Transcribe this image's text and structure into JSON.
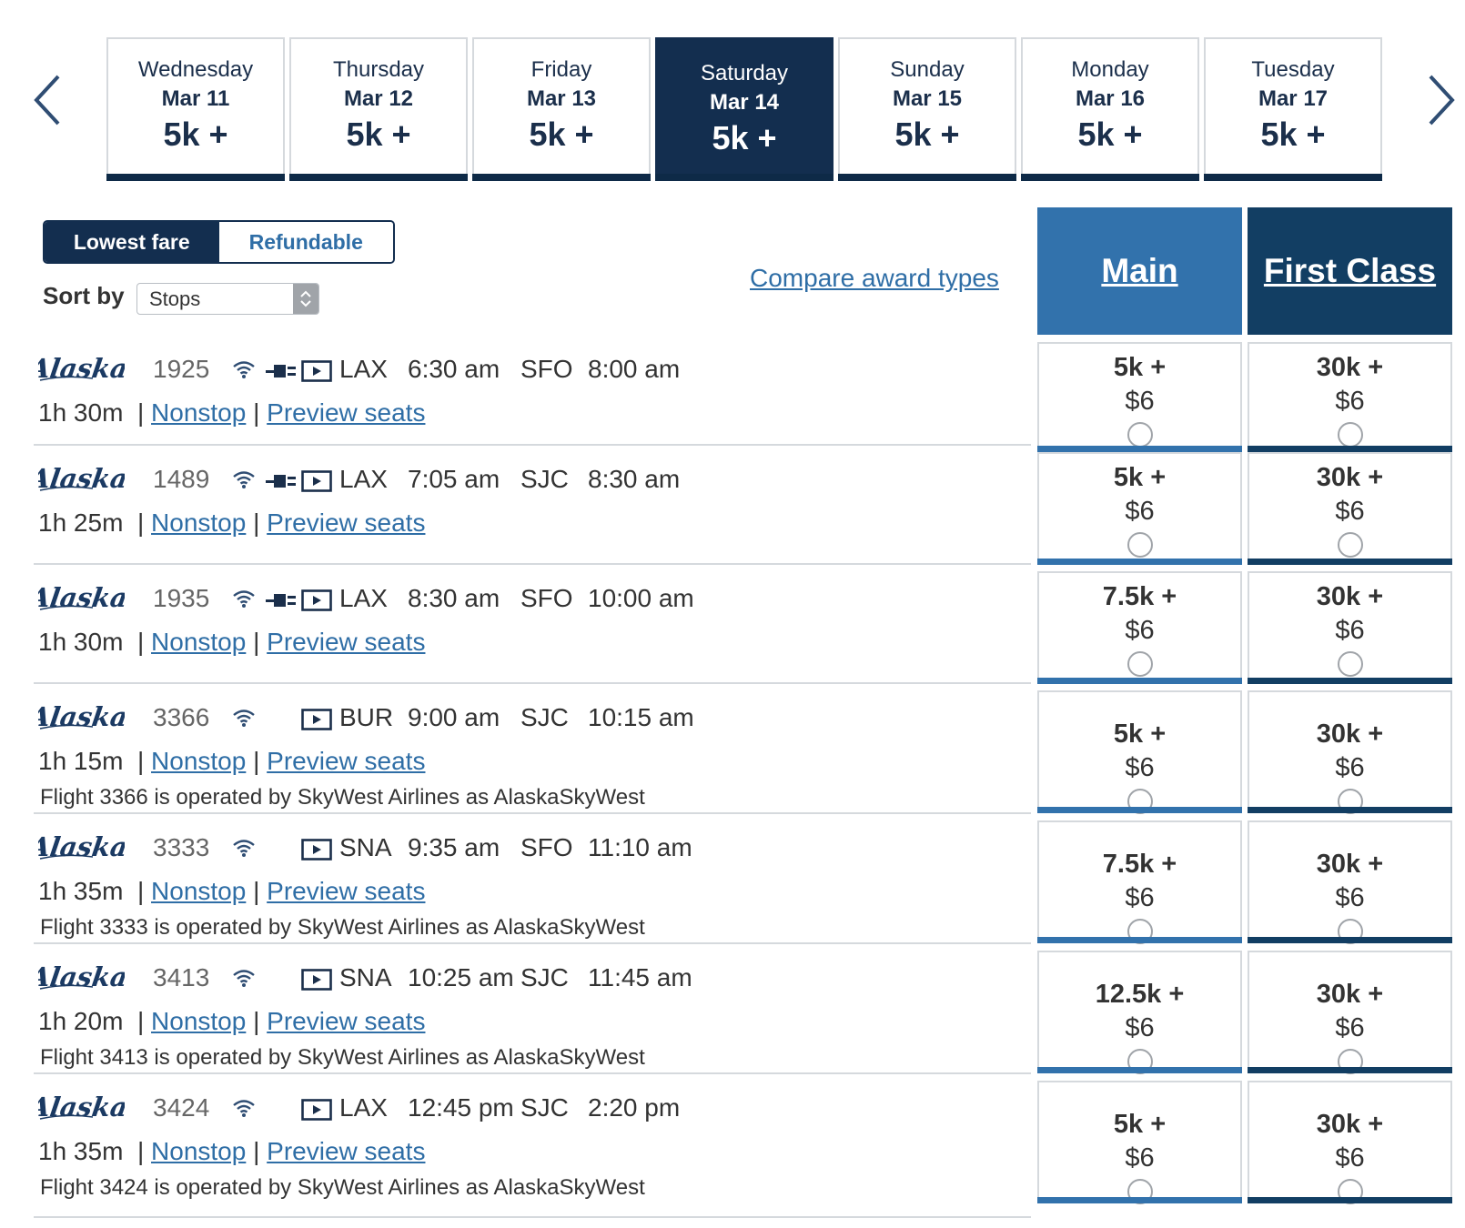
{
  "date_strip": {
    "dates": [
      {
        "day": "Wednesday",
        "date": "Mar 11",
        "price": "5k +",
        "selected": false
      },
      {
        "day": "Thursday",
        "date": "Mar 12",
        "price": "5k +",
        "selected": false
      },
      {
        "day": "Friday",
        "date": "Mar 13",
        "price": "5k +",
        "selected": false
      },
      {
        "day": "Saturday",
        "date": "Mar 14",
        "price": "5k +",
        "selected": true
      },
      {
        "day": "Sunday",
        "date": "Mar 15",
        "price": "5k +",
        "selected": false
      },
      {
        "day": "Monday",
        "date": "Mar 16",
        "price": "5k +",
        "selected": false
      },
      {
        "day": "Tuesday",
        "date": "Mar 17",
        "price": "5k +",
        "selected": false
      }
    ],
    "prev_icon": "chevron-left-icon",
    "next_icon": "chevron-right-icon"
  },
  "fare_toggle": {
    "options": [
      {
        "label": "Lowest fare",
        "active": true
      },
      {
        "label": "Refundable",
        "active": false
      }
    ]
  },
  "sort": {
    "label": "Sort by",
    "selected": "Stops"
  },
  "compare_link": "Compare award types",
  "cabins": {
    "main": "Main",
    "first": "First Class"
  },
  "colors": {
    "navy": "#132e4f",
    "main_blue": "#3272ac",
    "first_blue": "#123e63",
    "link": "#2f6ea6"
  },
  "flights": [
    {
      "airline": "Alaska",
      "number": "1925",
      "amenities": [
        "wifi",
        "power",
        "video"
      ],
      "origin": "LAX",
      "depart": "6:30 am",
      "destination": "SFO",
      "arrive": "8:00 am",
      "duration": "1h 30m",
      "stops": "Nonstop",
      "seats_link": "Preview seats",
      "operator_note": "",
      "main": {
        "miles": "5k +",
        "tax": "$6"
      },
      "first": {
        "miles": "30k +",
        "tax": "$6"
      }
    },
    {
      "airline": "Alaska",
      "number": "1489",
      "amenities": [
        "wifi",
        "power",
        "video"
      ],
      "origin": "LAX",
      "depart": "7:05 am",
      "destination": "SJC",
      "arrive": "8:30 am",
      "duration": "1h 25m",
      "stops": "Nonstop",
      "seats_link": "Preview seats",
      "operator_note": "",
      "main": {
        "miles": "5k +",
        "tax": "$6"
      },
      "first": {
        "miles": "30k +",
        "tax": "$6"
      }
    },
    {
      "airline": "Alaska",
      "number": "1935",
      "amenities": [
        "wifi",
        "power",
        "video"
      ],
      "origin": "LAX",
      "depart": "8:30 am",
      "destination": "SFO",
      "arrive": "10:00 am",
      "duration": "1h 30m",
      "stops": "Nonstop",
      "seats_link": "Preview seats",
      "operator_note": "",
      "main": {
        "miles": "7.5k +",
        "tax": "$6"
      },
      "first": {
        "miles": "30k +",
        "tax": "$6"
      }
    },
    {
      "airline": "Alaska",
      "number": "3366",
      "amenities": [
        "wifi",
        "video"
      ],
      "origin": "BUR",
      "depart": "9:00 am",
      "destination": "SJC",
      "arrive": "10:15 am",
      "duration": "1h 15m",
      "stops": "Nonstop",
      "seats_link": "Preview seats",
      "operator_note": "Flight 3366 is operated by SkyWest Airlines as AlaskaSkyWest",
      "main": {
        "miles": "5k +",
        "tax": "$6"
      },
      "first": {
        "miles": "30k +",
        "tax": "$6"
      }
    },
    {
      "airline": "Alaska",
      "number": "3333",
      "amenities": [
        "wifi",
        "video"
      ],
      "origin": "SNA",
      "depart": "9:35 am",
      "destination": "SFO",
      "arrive": "11:10 am",
      "duration": "1h 35m",
      "stops": "Nonstop",
      "seats_link": "Preview seats",
      "operator_note": "Flight 3333 is operated by SkyWest Airlines as AlaskaSkyWest",
      "main": {
        "miles": "7.5k +",
        "tax": "$6"
      },
      "first": {
        "miles": "30k +",
        "tax": "$6"
      }
    },
    {
      "airline": "Alaska",
      "number": "3413",
      "amenities": [
        "wifi",
        "video"
      ],
      "origin": "SNA",
      "depart": "10:25 am",
      "destination": "SJC",
      "arrive": "11:45 am",
      "duration": "1h 20m",
      "stops": "Nonstop",
      "seats_link": "Preview seats",
      "operator_note": "Flight 3413 is operated by SkyWest Airlines as AlaskaSkyWest",
      "main": {
        "miles": "12.5k +",
        "tax": "$6"
      },
      "first": {
        "miles": "30k +",
        "tax": "$6"
      }
    },
    {
      "airline": "Alaska",
      "number": "3424",
      "amenities": [
        "wifi",
        "video"
      ],
      "origin": "LAX",
      "depart": "12:45 pm",
      "destination": "SJC",
      "arrive": "2:20 pm",
      "duration": "1h 35m",
      "stops": "Nonstop",
      "seats_link": "Preview seats",
      "operator_note": "Flight 3424 is operated by SkyWest Airlines as AlaskaSkyWest",
      "main": {
        "miles": "5k +",
        "tax": "$6"
      },
      "first": {
        "miles": "30k +",
        "tax": "$6"
      }
    }
  ]
}
